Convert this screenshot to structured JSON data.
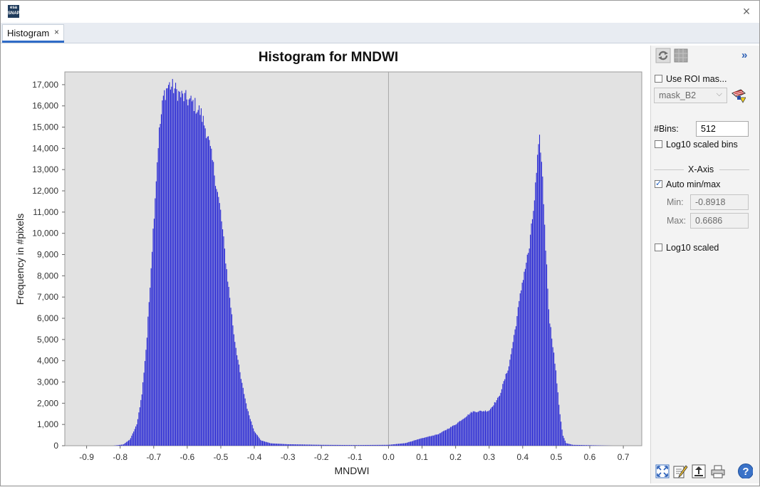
{
  "window": {
    "app_icon_top": "esa",
    "app_icon_bottom": "SNAP",
    "close_glyph": "×"
  },
  "tab": {
    "label": "Histogram",
    "close_glyph": "×"
  },
  "chart_data": {
    "type": "bar",
    "title": "Histogram for MNDWI",
    "xlabel": "MNDWI",
    "ylabel": "Frequency in #pixels",
    "xlim": [
      -0.965,
      0.755
    ],
    "ylim": [
      0,
      17600
    ],
    "x_ticks": [
      -0.9,
      -0.8,
      -0.7,
      -0.6,
      -0.5,
      -0.4,
      -0.3,
      -0.2,
      -0.1,
      0.0,
      0.1,
      0.2,
      0.3,
      0.4,
      0.5,
      0.6,
      0.7
    ],
    "x_tick_labels": [
      "-0.9",
      "-0.8",
      "-0.7",
      "-0.6",
      "-0.5",
      "-0.4",
      "-0.3",
      "-0.2",
      "-0.1",
      "0.0",
      "0.1",
      "0.2",
      "0.3",
      "0.4",
      "0.5",
      "0.6",
      "0.7"
    ],
    "y_ticks": [
      0,
      1000,
      2000,
      3000,
      4000,
      5000,
      6000,
      7000,
      8000,
      9000,
      10000,
      11000,
      12000,
      13000,
      14000,
      15000,
      16000,
      17000
    ],
    "y_tick_labels": [
      "0",
      "1,000",
      "2,000",
      "3,000",
      "4,000",
      "5,000",
      "6,000",
      "7,000",
      "8,000",
      "9,000",
      "10,000",
      "11,000",
      "12,000",
      "13,000",
      "14,000",
      "15,000",
      "16,000",
      "17,000"
    ],
    "bins": 512,
    "bin_min": -0.8918,
    "bin_max": 0.6686,
    "profile": [
      [
        -0.8918,
        0
      ],
      [
        -0.82,
        0
      ],
      [
        -0.79,
        60
      ],
      [
        -0.77,
        300
      ],
      [
        -0.75,
        1000
      ],
      [
        -0.735,
        2400
      ],
      [
        -0.72,
        5000
      ],
      [
        -0.7,
        10500
      ],
      [
        -0.685,
        14500
      ],
      [
        -0.67,
        16500
      ],
      [
        -0.655,
        17000
      ],
      [
        -0.64,
        16850
      ],
      [
        -0.62,
        16500
      ],
      [
        -0.6,
        16300
      ],
      [
        -0.58,
        16100
      ],
      [
        -0.56,
        15700
      ],
      [
        -0.54,
        14700
      ],
      [
        -0.52,
        13000
      ],
      [
        -0.5,
        11000
      ],
      [
        -0.48,
        8000
      ],
      [
        -0.46,
        5200
      ],
      [
        -0.44,
        3200
      ],
      [
        -0.42,
        1700
      ],
      [
        -0.4,
        700
      ],
      [
        -0.38,
        250
      ],
      [
        -0.35,
        110
      ],
      [
        -0.3,
        70
      ],
      [
        -0.2,
        40
      ],
      [
        -0.1,
        30
      ],
      [
        0.0,
        40
      ],
      [
        0.05,
        120
      ],
      [
        0.1,
        350
      ],
      [
        0.15,
        550
      ],
      [
        0.2,
        1000
      ],
      [
        0.25,
        1600
      ],
      [
        0.3,
        1650
      ],
      [
        0.33,
        2300
      ],
      [
        0.36,
        3800
      ],
      [
        0.38,
        5700
      ],
      [
        0.4,
        7800
      ],
      [
        0.42,
        9300
      ],
      [
        0.435,
        11500
      ],
      [
        0.445,
        13500
      ],
      [
        0.452,
        14500
      ],
      [
        0.46,
        12500
      ],
      [
        0.47,
        9000
      ],
      [
        0.48,
        6000
      ],
      [
        0.49,
        4800
      ],
      [
        0.5,
        3400
      ],
      [
        0.51,
        1700
      ],
      [
        0.52,
        500
      ],
      [
        0.53,
        120
      ],
      [
        0.55,
        40
      ],
      [
        0.6686,
        0
      ]
    ],
    "grid": true,
    "bar_color": "#2828d4",
    "plot_background": "#e2e2e2",
    "zero_line": true
  },
  "side": {
    "use_roi_label": "Use ROI mas...",
    "use_roi_checked": false,
    "roi_mask_value": "mask_B2",
    "bins_label": "#Bins:",
    "bins_value": "512",
    "log10_bins_label": "Log10 scaled bins",
    "log10_bins_checked": false,
    "xaxis_title": "X-Axis",
    "auto_minmax_label": "Auto min/max",
    "auto_minmax_checked": true,
    "min_label": "Min:",
    "min_value": "-0.8918",
    "max_label": "Max:",
    "max_value": "0.6686",
    "log10_scaled_label": "Log10 scaled",
    "log10_scaled_checked": false,
    "collapse_glyph": "»"
  },
  "colors": {
    "accent": "#2f6bc7",
    "bar": "#2828d4"
  },
  "icons": [
    "refresh-icon",
    "grid-icon",
    "collapse-panel-icon",
    "roi-mask-icon",
    "zoom-all-icon",
    "edit-chart-icon",
    "export-icon",
    "print-icon",
    "help-icon"
  ]
}
